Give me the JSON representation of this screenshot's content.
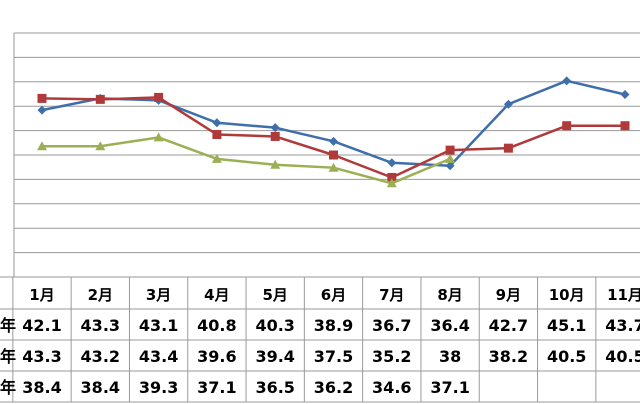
{
  "chart_data": {
    "type": "line",
    "categories": [
      "1月",
      "2月",
      "3月",
      "4月",
      "5月",
      "6月",
      "7月",
      "8月",
      "9月",
      "10月",
      "11月"
    ],
    "y_range": [
      25,
      50
    ],
    "grid": true,
    "series": [
      {
        "name": "年",
        "color": "#3f6faa",
        "marker": "diamond",
        "values": [
          42.1,
          43.3,
          43.1,
          40.8,
          40.3,
          38.9,
          36.7,
          36.4,
          42.7,
          45.1,
          43.7
        ],
        "table": [
          "42.1",
          "43.3",
          "43.1",
          "40.8",
          "40.3",
          "38.9",
          "36.7",
          "36.4",
          "42.7",
          "45.1",
          "43.7"
        ]
      },
      {
        "name": "年",
        "color": "#b03a3a",
        "marker": "square",
        "values": [
          43.3,
          43.2,
          43.4,
          39.6,
          39.4,
          37.5,
          35.2,
          38,
          38.2,
          40.5,
          40.5
        ],
        "table": [
          "43.3",
          "43.2",
          "43.4",
          "39.6",
          "39.4",
          "37.5",
          "35.2",
          "38",
          "38.2",
          "40.5",
          "40.5"
        ]
      },
      {
        "name": "年",
        "color": "#9bb055",
        "marker": "triangle",
        "values": [
          38.4,
          38.4,
          39.3,
          37.1,
          36.5,
          36.2,
          34.6,
          37.1,
          null,
          null,
          null
        ],
        "table": [
          "38.4",
          "38.4",
          "39.3",
          "37.1",
          "36.5",
          "36.2",
          "34.6",
          "37.1",
          "",
          "",
          ""
        ]
      }
    ]
  }
}
